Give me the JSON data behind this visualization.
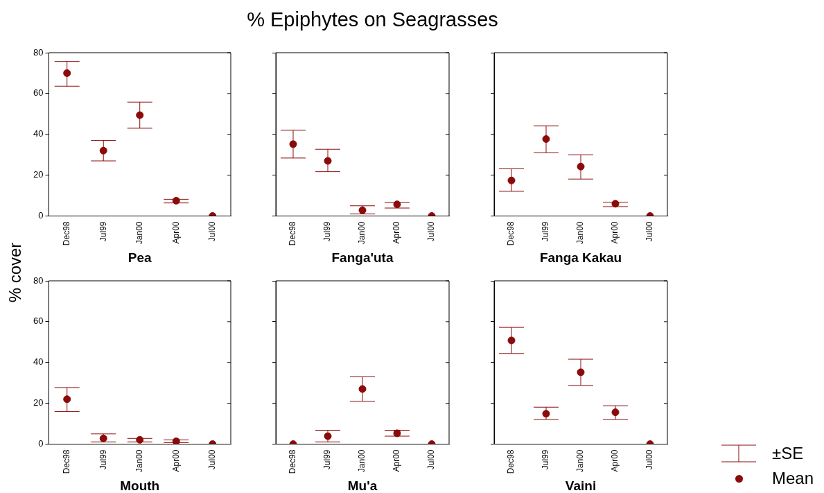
{
  "chart_data": [
    {
      "type": "scatter",
      "ylabel": "% cover",
      "xlabel": "Pea",
      "categories": [
        "Dec98",
        "Jul99",
        "Jan00",
        "Apr00",
        "Jul00"
      ],
      "ylim": [
        0,
        80
      ],
      "yticks": [
        0,
        20,
        40,
        60,
        80
      ],
      "marker": "circle",
      "series": [
        {
          "color": "#8b0a0a",
          "values": [
            70,
            32,
            49.4,
            7.5,
            0
          ],
          "errors": [
            [
              63.6,
              75.7
            ],
            [
              27,
              37
            ],
            [
              43,
              55.8
            ],
            [
              6.4,
              8.2
            ],
            [
              0,
              0
            ]
          ]
        }
      ]
    },
    {
      "type": "scatter",
      "title": "% Epiphytes on Seagrasses",
      "xlabel": "Fanga'uta",
      "categories": [
        "Dec98",
        "Jul99",
        "Jan00",
        "Apr00",
        "Jul00"
      ],
      "ylim": [
        0,
        80
      ],
      "yticks": [
        0,
        20,
        40,
        60,
        80
      ],
      "tick_labels": "x",
      "marker": "circle",
      "series": [
        {
          "color": "#8b0a0a",
          "values": [
            35.2,
            27,
            2.8,
            5.7,
            0
          ],
          "errors": [
            [
              28.4,
              42
            ],
            [
              21.7,
              32.7
            ],
            [
              1,
              5
            ],
            [
              3.9,
              6.6
            ],
            [
              0,
              0
            ]
          ]
        }
      ]
    },
    {
      "type": "scatter",
      "xlabel": "Fanga Kakau",
      "categories": [
        "Dec98",
        "Jul99",
        "Jan00",
        "Apr00",
        "Jul00"
      ],
      "ylim": [
        0,
        80
      ],
      "yticks": [
        0,
        20,
        40,
        60,
        80
      ],
      "tick_labels": "x",
      "marker": "circle",
      "series": [
        {
          "color": "#8b0a0a",
          "values": [
            17.4,
            37.7,
            24.2,
            6,
            0
          ],
          "errors": [
            [
              12.1,
              23.1
            ],
            [
              31,
              44.1
            ],
            [
              18.1,
              30
            ],
            [
              4.6,
              6.8
            ],
            [
              0,
              0
            ]
          ]
        }
      ]
    },
    {
      "type": "scatter",
      "xlabel": "Mouth",
      "categories": [
        "Dec98",
        "Jul99",
        "Jan00",
        "Apr00",
        "Jul00"
      ],
      "ylim": [
        0,
        80
      ],
      "yticks": [
        0,
        20,
        40,
        60,
        80
      ],
      "marker": "circle",
      "series": [
        {
          "color": "#8b0a0a",
          "values": [
            22,
            2.8,
            2.1,
            1.4,
            0
          ],
          "errors": [
            [
              16,
              27.7
            ],
            [
              1.1,
              5
            ],
            [
              1.1,
              2.8
            ],
            [
              0.7,
              2.1
            ],
            [
              0,
              0
            ]
          ]
        }
      ]
    },
    {
      "type": "scatter",
      "xlabel": "Mu'a",
      "categories": [
        "Dec98",
        "Jul99",
        "Jan00",
        "Apr00",
        "Jul00"
      ],
      "ylim": [
        0,
        80
      ],
      "yticks": [
        0,
        20,
        40,
        60,
        80
      ],
      "tick_labels": "x",
      "marker": "circle",
      "series": [
        {
          "color": "#8b0a0a",
          "values": [
            0,
            3.9,
            27,
            5.3,
            0
          ],
          "errors": [
            [
              0,
              0
            ],
            [
              1.1,
              6.8
            ],
            [
              21,
              33
            ],
            [
              3.9,
              6.8
            ],
            [
              0,
              0
            ]
          ]
        }
      ]
    },
    {
      "type": "scatter",
      "xlabel": "Vaini",
      "categories": [
        "Dec98",
        "Jul99",
        "Jan00",
        "Apr00",
        "Jul00"
      ],
      "ylim": [
        0,
        80
      ],
      "yticks": [
        0,
        20,
        40,
        60,
        80
      ],
      "tick_labels": "x",
      "marker": "circle",
      "legend": "bottom right",
      "annotations": [
        "±SE"
      ],
      "series": [
        {
          "name": "Mean",
          "color": "#8b0a0a",
          "values": [
            50.8,
            14.9,
            35.2,
            15.6,
            0
          ],
          "errors": [
            [
              44.4,
              57.2
            ],
            [
              12.1,
              18.1
            ],
            [
              28.8,
              41.6
            ],
            [
              12.1,
              18.8
            ],
            [
              0,
              0
            ]
          ]
        }
      ]
    }
  ]
}
